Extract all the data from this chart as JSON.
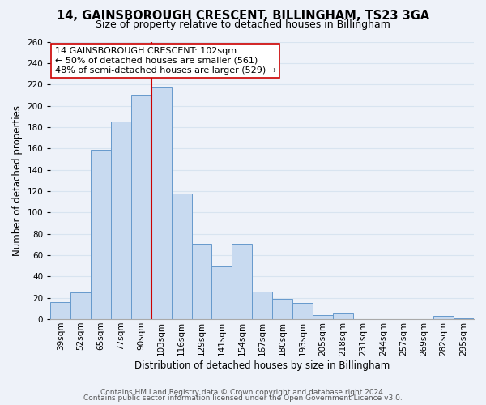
{
  "title": "14, GAINSBOROUGH CRESCENT, BILLINGHAM, TS23 3GA",
  "subtitle": "Size of property relative to detached houses in Billingham",
  "xlabel": "Distribution of detached houses by size in Billingham",
  "ylabel": "Number of detached properties",
  "bar_labels": [
    "39sqm",
    "52sqm",
    "65sqm",
    "77sqm",
    "90sqm",
    "103sqm",
    "116sqm",
    "129sqm",
    "141sqm",
    "154sqm",
    "167sqm",
    "180sqm",
    "193sqm",
    "205sqm",
    "218sqm",
    "231sqm",
    "244sqm",
    "257sqm",
    "269sqm",
    "282sqm",
    "295sqm"
  ],
  "bar_values": [
    16,
    25,
    159,
    185,
    210,
    217,
    118,
    71,
    49,
    71,
    26,
    19,
    15,
    4,
    5,
    0,
    0,
    0,
    0,
    3,
    1
  ],
  "bar_color": "#c8daf0",
  "bar_edge_color": "#6699cc",
  "highlight_index": 5,
  "highlight_line_color": "#cc0000",
  "ylim": [
    0,
    260
  ],
  "yticks": [
    0,
    20,
    40,
    60,
    80,
    100,
    120,
    140,
    160,
    180,
    200,
    220,
    240,
    260
  ],
  "annotation_title": "14 GAINSBOROUGH CRESCENT: 102sqm",
  "annotation_line1": "← 50% of detached houses are smaller (561)",
  "annotation_line2": "48% of semi-detached houses are larger (529) →",
  "annotation_box_color": "#ffffff",
  "annotation_box_edge": "#cc0000",
  "footer1": "Contains HM Land Registry data © Crown copyright and database right 2024.",
  "footer2": "Contains public sector information licensed under the Open Government Licence v3.0.",
  "background_color": "#eef2f9",
  "grid_color": "#d8e4f0",
  "title_fontsize": 10.5,
  "subtitle_fontsize": 9,
  "axis_label_fontsize": 8.5,
  "tick_fontsize": 7.5,
  "annotation_fontsize": 8,
  "footer_fontsize": 6.5
}
